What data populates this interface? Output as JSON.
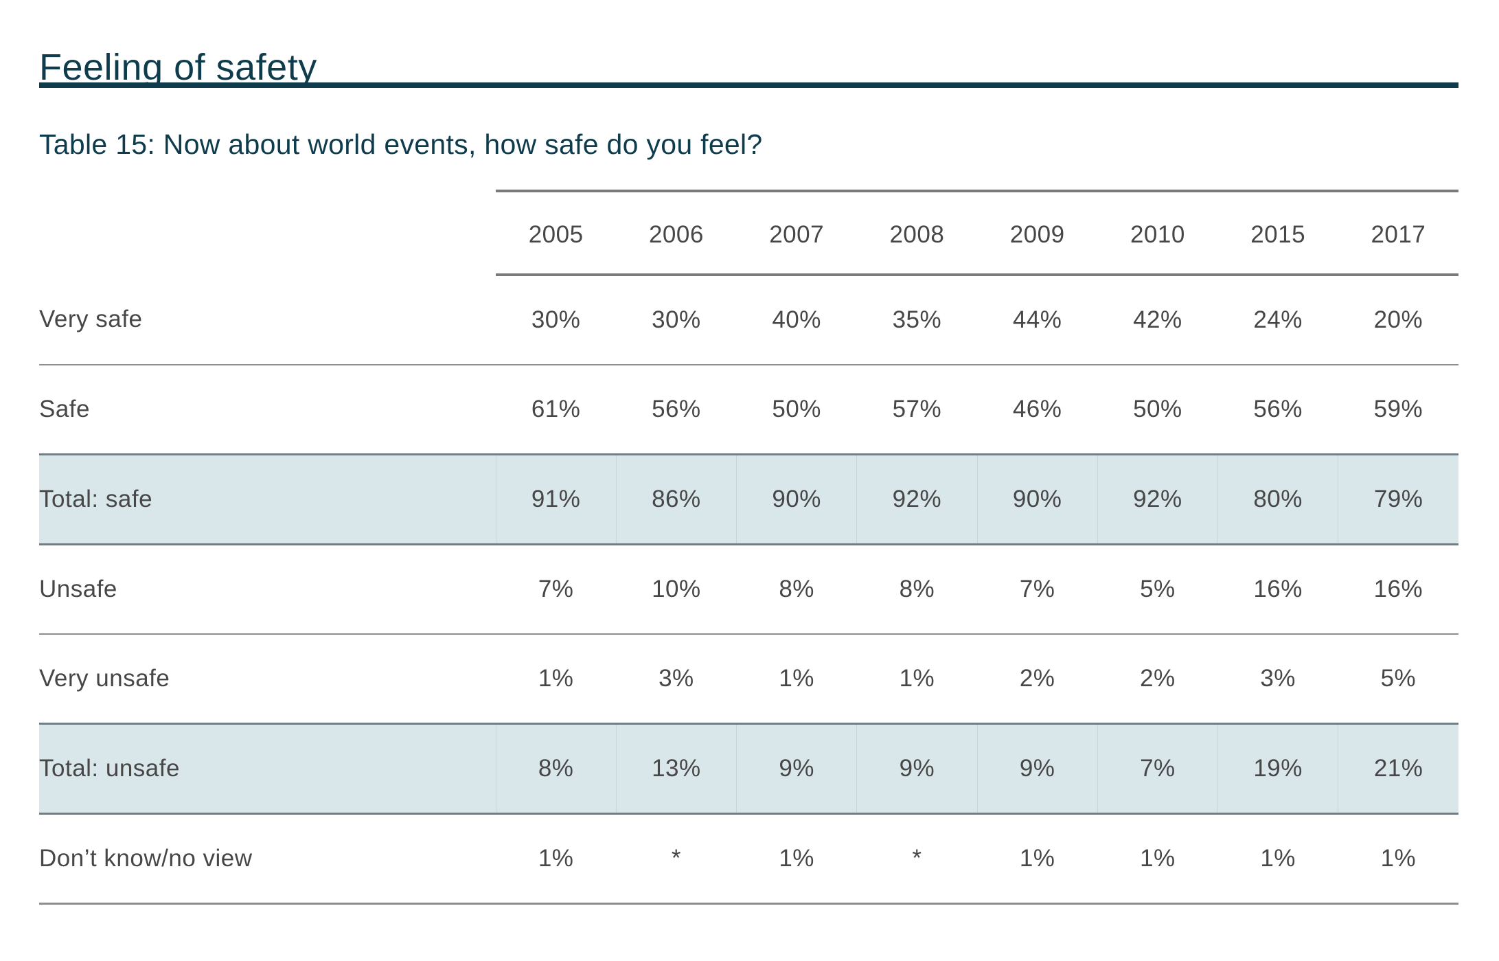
{
  "page": {
    "title": "Feeling of safety",
    "caption": "Table 15: Now about world events, how safe do you feel?"
  },
  "table": {
    "columns": [
      "2005",
      "2006",
      "2007",
      "2008",
      "2009",
      "2010",
      "2015",
      "2017"
    ],
    "rows": [
      {
        "label": "Very safe",
        "highlight": false,
        "values": [
          "30%",
          "30%",
          "40%",
          "35%",
          "44%",
          "42%",
          "24%",
          "20%"
        ]
      },
      {
        "label": "Safe",
        "highlight": false,
        "values": [
          "61%",
          "56%",
          "50%",
          "57%",
          "46%",
          "50%",
          "56%",
          "59%"
        ]
      },
      {
        "label": "Total: safe",
        "highlight": true,
        "values": [
          "91%",
          "86%",
          "90%",
          "92%",
          "90%",
          "92%",
          "80%",
          "79%"
        ]
      },
      {
        "label": "Unsafe",
        "highlight": false,
        "values": [
          "7%",
          "10%",
          "8%",
          "8%",
          "7%",
          "5%",
          "16%",
          "16%"
        ]
      },
      {
        "label": "Very unsafe",
        "highlight": false,
        "values": [
          "1%",
          "3%",
          "1%",
          "1%",
          "2%",
          "2%",
          "3%",
          "5%"
        ]
      },
      {
        "label": "Total: unsafe",
        "highlight": true,
        "values": [
          "8%",
          "13%",
          "9%",
          "9%",
          "9%",
          "7%",
          "19%",
          "21%"
        ]
      },
      {
        "label": "Don’t know/no view",
        "highlight": false,
        "values": [
          "1%",
          "*",
          "1%",
          "*",
          "1%",
          "1%",
          "1%",
          "1%"
        ]
      }
    ]
  },
  "colors": {
    "accent_teal": "#0e3c4d",
    "body_text": "#474747",
    "rule_strong": "#7a7a7a",
    "rule_thin": "#8d8d8d",
    "highlight_row_background": "#d9e6ea",
    "highlight_row_border": "#6f7f85"
  }
}
